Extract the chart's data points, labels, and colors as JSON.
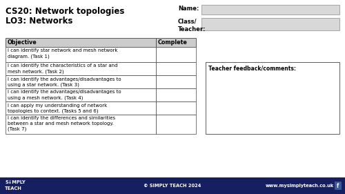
{
  "title_line1": "CS20: Network topologies",
  "title_line2": "LO3: Networks",
  "name_label": "Name:",
  "class_label": "Class/\nTeacher:",
  "table_header_obj": "Objective",
  "table_header_comp": "Complete",
  "objectives": [
    "I can identify star network and mesh network\ndiagram. (Task 1)",
    "I can identify the characteristics of a star and\nmesh network. (Task 2)",
    "I can identify the advantages/disadvantages to\nusing a star network. (Task 3)",
    "I can identify the advantages/disadvantages to\nusing a mesh network. (Task 4)",
    "I can apply my understanding of network\ntopologies to context. (Tasks 5 and 6)",
    "I can identify the differences and similarities\nbetween a star and mesh network topology.\n(Task 7)"
  ],
  "feedback_label": "Teacher feedback/comments:",
  "footer_left1": "S",
  "footer_left2": "IMPLY",
  "footer_left3": "TEACH",
  "footer_center": "© SIMPLY TEACH 2024",
  "footer_right": "www.mysimplyteach.co.uk",
  "footer_bg": "#162060",
  "footer_text_color": "#ffffff",
  "bg_color": "#ffffff",
  "table_header_bg": "#cccccc",
  "input_box_bg": "#d8d8d8",
  "border_color": "#444444",
  "text_color": "#000000",
  "title_fontsize": 8.5,
  "body_fontsize": 5.0,
  "header_fontsize": 5.8,
  "footer_fontsize": 4.8,
  "name_fontsize": 6.0
}
